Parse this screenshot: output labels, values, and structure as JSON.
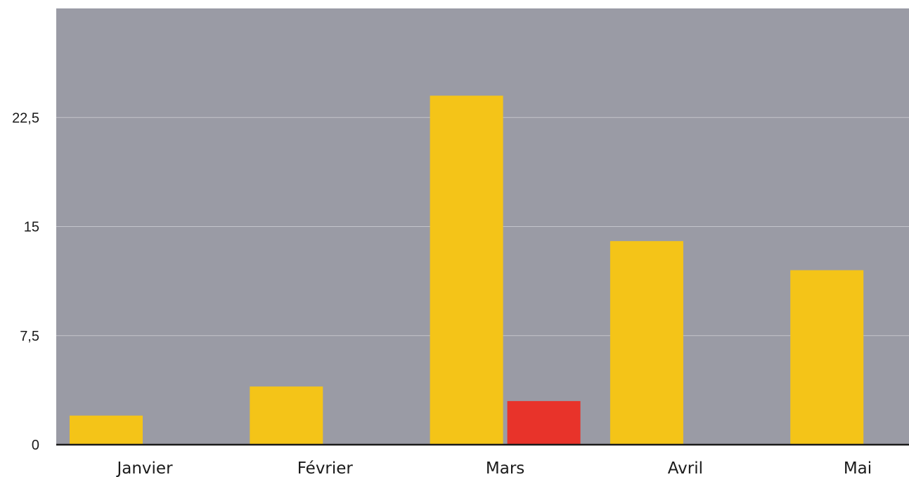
{
  "chart_data": {
    "type": "bar",
    "title": "",
    "xlabel": "",
    "ylabel": "",
    "categories": [
      "Janvier",
      "Février",
      "Mars",
      "Avril",
      "Mai"
    ],
    "series": [
      {
        "values": [
          2,
          4,
          24,
          14,
          12
        ],
        "color": "#f4c418"
      },
      {
        "values": [
          0,
          0,
          3,
          0,
          0
        ],
        "color": "#e8332a"
      }
    ],
    "ylim": [
      0,
      30
    ],
    "yticks": [
      0,
      7.5,
      15,
      22.5
    ],
    "ytick_labels": [
      "0",
      "7,5",
      "15",
      "22,5"
    ],
    "grid": true,
    "legend": "none",
    "plot_background": "#9a9ba5"
  }
}
